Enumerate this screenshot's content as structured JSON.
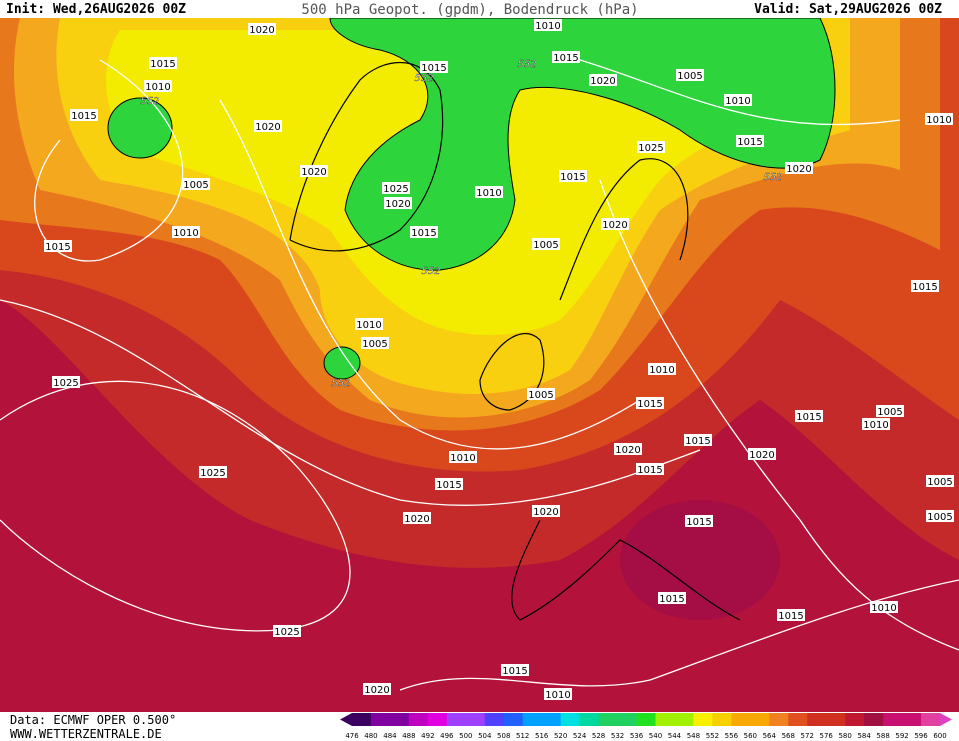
{
  "header": {
    "init": "Init: Wed,26AUG2026 00Z",
    "title": "500 hPa Geopot. (gpdm), Bodendruck (hPa)",
    "valid": "Valid: Sat,29AUG2026 00Z"
  },
  "footer": {
    "data": "Data: ECMWF OPER 0.500°",
    "website": "WWW.WETTERZENTRALE.DE"
  },
  "colorbar": {
    "ticks": [
      476,
      480,
      484,
      488,
      492,
      496,
      500,
      504,
      508,
      512,
      516,
      520,
      524,
      528,
      532,
      536,
      540,
      544,
      548,
      552,
      556,
      560,
      564,
      568,
      572,
      576,
      580,
      584,
      588,
      592,
      596,
      600
    ]
  },
  "isobar_labels": [
    1020,
    1010,
    1015,
    1015,
    1015,
    1010,
    1015,
    1020,
    1020,
    1005,
    1010,
    1010,
    1015,
    1025,
    1020,
    1020,
    1025,
    1020,
    1010,
    1015,
    1005,
    1010,
    1015,
    1015,
    1020,
    1005,
    1015,
    1010,
    1005,
    1025,
    1010,
    1005,
    1015,
    1015,
    1005,
    1010,
    1015,
    1020,
    1020,
    1010,
    1015,
    1025,
    1015,
    1005,
    1020,
    1020,
    1015,
    1005,
    1015,
    1015,
    1010,
    1025,
    1015,
    1020,
    1010
  ],
  "geopotential_labels": [
    552,
    552,
    552,
    552,
    552,
    552
  ]
}
